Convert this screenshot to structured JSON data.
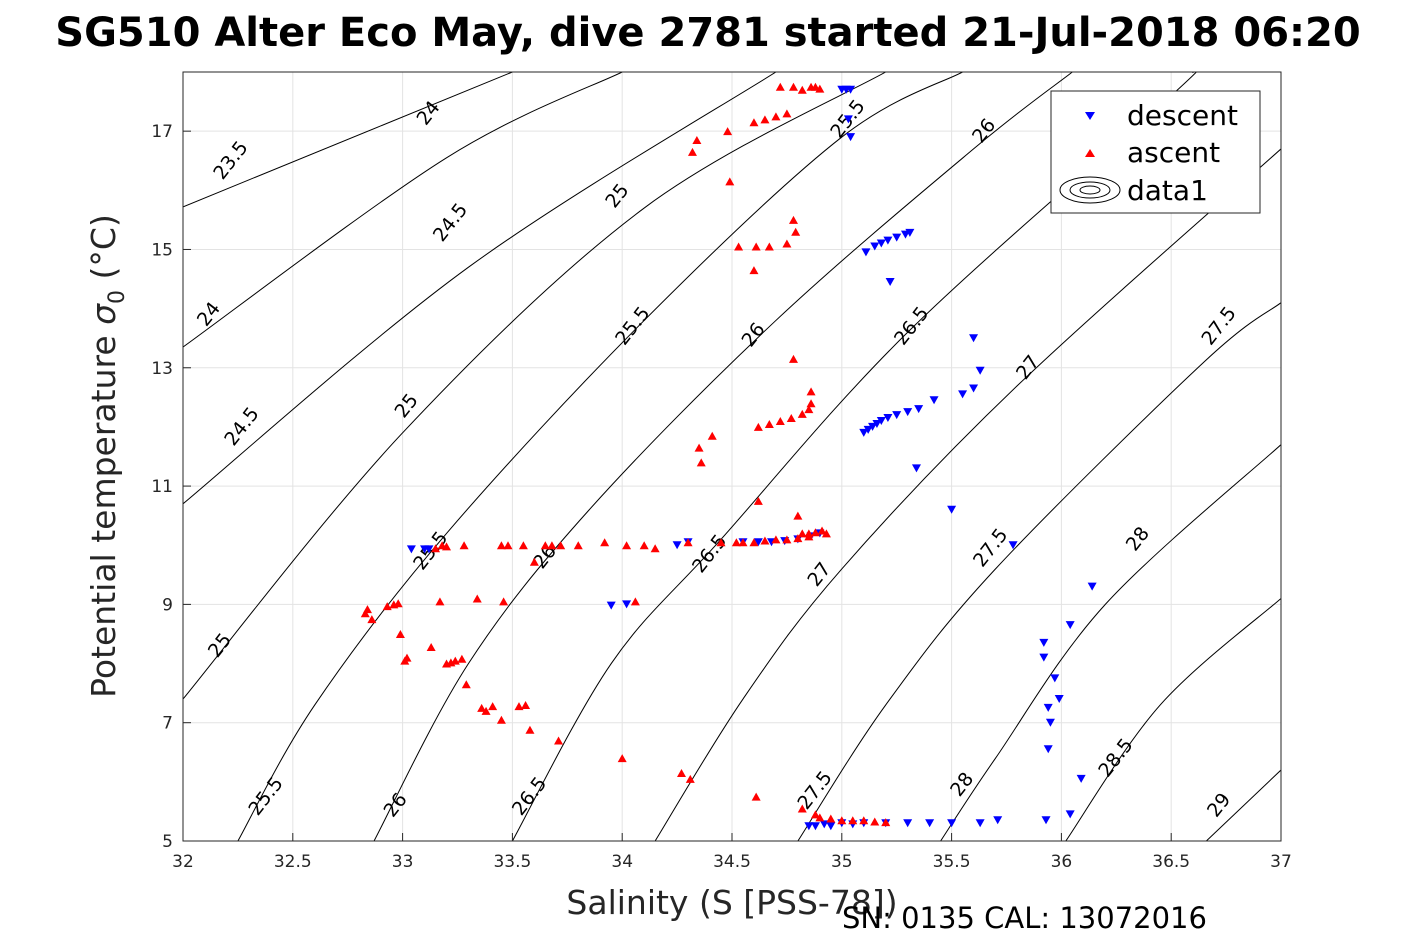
{
  "chart_data": {
    "type": "scatter",
    "title": "SG510 Alter Eco May, dive 2781 started 21-Jul-2018 06:20",
    "xlabel": "Salinity (S [PSS-78])",
    "ylabel_main": "Potential temperature ",
    "ylabel_sigma": "σ",
    "ylabel_sub": "0",
    "ylabel_unit": " (°C)",
    "footer": "SN: 0135  CAL: 13072016",
    "xlim": [
      32,
      37
    ],
    "ylim": [
      5,
      18
    ],
    "xticks": [
      32,
      32.5,
      33,
      33.5,
      34,
      34.5,
      35,
      35.5,
      36,
      36.5,
      37
    ],
    "yticks": [
      5,
      7,
      9,
      11,
      13,
      15,
      17
    ],
    "grid": true,
    "legend": {
      "placement": "top-right",
      "entries": [
        "descent",
        "ascent",
        "data1"
      ]
    },
    "contour_labels": [
      {
        "x": 32.22,
        "y": 16.5,
        "text": "23.5"
      },
      {
        "x": 33.12,
        "y": 17.3,
        "text": "24"
      },
      {
        "x": 32.12,
        "y": 13.9,
        "text": "24"
      },
      {
        "x": 33.22,
        "y": 15.45,
        "text": "24.5"
      },
      {
        "x": 32.27,
        "y": 12.0,
        "text": "24.5"
      },
      {
        "x": 33.98,
        "y": 15.9,
        "text": "25"
      },
      {
        "x": 33.02,
        "y": 12.35,
        "text": "25"
      },
      {
        "x": 32.17,
        "y": 8.3,
        "text": "25"
      },
      {
        "x": 34.05,
        "y": 13.7,
        "text": "25.5"
      },
      {
        "x": 33.13,
        "y": 9.9,
        "text": "25.5"
      },
      {
        "x": 32.38,
        "y": 5.75,
        "text": "25.5"
      },
      {
        "x": 34.6,
        "y": 13.55,
        "text": "26"
      },
      {
        "x": 33.65,
        "y": 9.8,
        "text": "26"
      },
      {
        "x": 32.97,
        "y": 5.6,
        "text": "26"
      },
      {
        "x": 35.03,
        "y": 17.2,
        "text": "25.5"
      },
      {
        "x": 35.65,
        "y": 17.0,
        "text": "26"
      },
      {
        "x": 35.32,
        "y": 13.7,
        "text": "26.5"
      },
      {
        "x": 34.4,
        "y": 9.85,
        "text": "26.5"
      },
      {
        "x": 33.58,
        "y": 5.75,
        "text": "26.5"
      },
      {
        "x": 35.85,
        "y": 13.0,
        "text": "27"
      },
      {
        "x": 34.9,
        "y": 9.5,
        "text": "27"
      },
      {
        "x": 34.88,
        "y": 5.85,
        "text": "27.5"
      },
      {
        "x": 35.68,
        "y": 9.95,
        "text": "27.5"
      },
      {
        "x": 36.72,
        "y": 13.7,
        "text": "27.5"
      },
      {
        "x": 35.55,
        "y": 5.95,
        "text": "28"
      },
      {
        "x": 36.35,
        "y": 10.1,
        "text": "28"
      },
      {
        "x": 36.25,
        "y": 6.4,
        "text": "28.5"
      },
      {
        "x": 36.72,
        "y": 5.6,
        "text": "29"
      }
    ],
    "contours": [
      {
        "sigma": 23.5,
        "points": [
          [
            32,
            15.72
          ],
          [
            33.5,
            18.0
          ]
        ]
      },
      {
        "sigma": 24,
        "points": [
          [
            32,
            13.35
          ],
          [
            33.2,
            16.55
          ],
          [
            34.0,
            18.0
          ]
        ]
      },
      {
        "sigma": 24.5,
        "points": [
          [
            32,
            10.7
          ],
          [
            33.3,
            14.7
          ],
          [
            34.7,
            18.0
          ]
        ]
      },
      {
        "sigma": 25,
        "points": [
          [
            32,
            7.4
          ],
          [
            33.0,
            11.9
          ],
          [
            34.1,
            15.7
          ],
          [
            35.2,
            18.0
          ]
        ]
      },
      {
        "sigma": 25.5,
        "points": [
          [
            32.25,
            5.0
          ],
          [
            32.6,
            7.3
          ],
          [
            33.2,
            10.2
          ],
          [
            34.1,
            13.8
          ],
          [
            35.0,
            16.9
          ],
          [
            35.55,
            18.0
          ]
        ]
      },
      {
        "sigma": 26,
        "points": [
          [
            32.87,
            5.0
          ],
          [
            33.3,
            8.0
          ],
          [
            33.85,
            10.6
          ],
          [
            34.7,
            13.8
          ],
          [
            35.6,
            16.7
          ],
          [
            36.05,
            18.0
          ]
        ]
      },
      {
        "sigma": 26.5,
        "points": [
          [
            33.5,
            5.0
          ],
          [
            33.95,
            8.0
          ],
          [
            34.45,
            10.1
          ],
          [
            35.3,
            13.6
          ],
          [
            36.5,
            17.6
          ],
          [
            36.6,
            18.0
          ]
        ]
      },
      {
        "sigma": 27,
        "points": [
          [
            34.15,
            5.0
          ],
          [
            34.55,
            7.4
          ],
          [
            35.0,
            9.6
          ],
          [
            35.8,
            12.7
          ],
          [
            37.0,
            16.7
          ]
        ]
      },
      {
        "sigma": 27.5,
        "points": [
          [
            34.8,
            5.0
          ],
          [
            35.2,
            7.3
          ],
          [
            35.7,
            9.6
          ],
          [
            36.65,
            13.1
          ],
          [
            37.0,
            14.1
          ]
        ]
      },
      {
        "sigma": 28,
        "points": [
          [
            35.45,
            5.0
          ],
          [
            35.7,
            6.4
          ],
          [
            36.2,
            9.0
          ],
          [
            37.0,
            11.7
          ]
        ]
      },
      {
        "sigma": 28.5,
        "points": [
          [
            36.02,
            5.0
          ],
          [
            36.45,
            7.3
          ],
          [
            37.0,
            9.1
          ]
        ]
      },
      {
        "sigma": 29,
        "points": [
          [
            36.66,
            5.0
          ],
          [
            37.0,
            6.2
          ]
        ]
      }
    ],
    "series": [
      {
        "name": "descent",
        "color": "#0000ff",
        "marker": "triangle-down",
        "points": [
          [
            35.0,
            17.7
          ],
          [
            35.02,
            17.7
          ],
          [
            35.04,
            17.7
          ],
          [
            35.03,
            17.2
          ],
          [
            35.04,
            16.9
          ],
          [
            35.11,
            14.95
          ],
          [
            35.15,
            15.05
          ],
          [
            35.18,
            15.1
          ],
          [
            35.21,
            15.15
          ],
          [
            35.25,
            15.2
          ],
          [
            35.29,
            15.25
          ],
          [
            35.31,
            15.28
          ],
          [
            35.22,
            14.45
          ],
          [
            35.1,
            11.9
          ],
          [
            35.12,
            11.95
          ],
          [
            35.14,
            12.0
          ],
          [
            35.16,
            12.05
          ],
          [
            35.18,
            12.1
          ],
          [
            35.21,
            12.15
          ],
          [
            35.25,
            12.2
          ],
          [
            35.3,
            12.25
          ],
          [
            35.35,
            12.3
          ],
          [
            35.42,
            12.45
          ],
          [
            35.55,
            12.55
          ],
          [
            35.6,
            12.65
          ],
          [
            35.63,
            12.95
          ],
          [
            35.6,
            13.5
          ],
          [
            35.34,
            11.3
          ],
          [
            35.5,
            10.6
          ],
          [
            35.78,
            10.0
          ],
          [
            33.04,
            9.93
          ],
          [
            33.1,
            9.93
          ],
          [
            33.12,
            9.93
          ],
          [
            33.95,
            8.98
          ],
          [
            34.02,
            9.0
          ],
          [
            34.25,
            10.0
          ],
          [
            34.3,
            10.05
          ],
          [
            34.55,
            10.05
          ],
          [
            34.62,
            10.05
          ],
          [
            34.68,
            10.05
          ],
          [
            34.74,
            10.07
          ],
          [
            34.8,
            10.1
          ],
          [
            34.86,
            10.15
          ],
          [
            34.9,
            10.2
          ],
          [
            35.92,
            8.35
          ],
          [
            35.92,
            8.1
          ],
          [
            35.94,
            7.25
          ],
          [
            35.95,
            7.0
          ],
          [
            35.94,
            6.55
          ],
          [
            35.97,
            7.75
          ],
          [
            35.99,
            7.4
          ],
          [
            36.04,
            8.65
          ],
          [
            36.14,
            9.3
          ],
          [
            36.09,
            6.05
          ],
          [
            36.04,
            5.45
          ],
          [
            35.93,
            5.35
          ],
          [
            34.85,
            5.25
          ],
          [
            34.88,
            5.25
          ],
          [
            34.92,
            5.28
          ],
          [
            34.95,
            5.25
          ],
          [
            35.0,
            5.3
          ],
          [
            35.05,
            5.28
          ],
          [
            35.1,
            5.3
          ],
          [
            35.2,
            5.3
          ],
          [
            35.3,
            5.3
          ],
          [
            35.4,
            5.3
          ],
          [
            35.5,
            5.3
          ],
          [
            35.63,
            5.3
          ],
          [
            35.71,
            5.35
          ]
        ]
      },
      {
        "name": "ascent",
        "color": "#ff0000",
        "marker": "triangle-up",
        "points": [
          [
            34.72,
            17.75
          ],
          [
            34.78,
            17.75
          ],
          [
            34.82,
            17.7
          ],
          [
            34.86,
            17.75
          ],
          [
            34.88,
            17.75
          ],
          [
            34.9,
            17.72
          ],
          [
            34.75,
            17.3
          ],
          [
            34.7,
            17.25
          ],
          [
            34.65,
            17.2
          ],
          [
            34.6,
            17.15
          ],
          [
            34.48,
            17.0
          ],
          [
            34.34,
            16.85
          ],
          [
            34.32,
            16.65
          ],
          [
            34.49,
            16.15
          ],
          [
            34.53,
            15.05
          ],
          [
            34.61,
            15.05
          ],
          [
            34.67,
            15.05
          ],
          [
            34.75,
            15.1
          ],
          [
            34.79,
            15.3
          ],
          [
            34.78,
            15.5
          ],
          [
            34.6,
            14.65
          ],
          [
            34.78,
            13.15
          ],
          [
            34.86,
            12.6
          ],
          [
            34.86,
            12.4
          ],
          [
            34.85,
            12.3
          ],
          [
            34.82,
            12.22
          ],
          [
            34.77,
            12.15
          ],
          [
            34.72,
            12.1
          ],
          [
            34.67,
            12.05
          ],
          [
            34.62,
            12.0
          ],
          [
            34.41,
            11.85
          ],
          [
            34.35,
            11.65
          ],
          [
            34.36,
            11.4
          ],
          [
            34.62,
            10.75
          ],
          [
            34.8,
            10.5
          ],
          [
            34.82,
            10.2
          ],
          [
            34.85,
            10.2
          ],
          [
            34.88,
            10.22
          ],
          [
            34.91,
            10.25
          ],
          [
            34.93,
            10.2
          ],
          [
            34.85,
            10.15
          ],
          [
            34.8,
            10.12
          ],
          [
            34.75,
            10.1
          ],
          [
            34.7,
            10.1
          ],
          [
            34.65,
            10.08
          ],
          [
            34.6,
            10.05
          ],
          [
            34.55,
            10.05
          ],
          [
            34.52,
            10.05
          ],
          [
            34.45,
            10.05
          ],
          [
            34.3,
            10.05
          ],
          [
            34.15,
            9.95
          ],
          [
            34.1,
            10.0
          ],
          [
            34.02,
            10.0
          ],
          [
            33.92,
            10.05
          ],
          [
            33.8,
            10.0
          ],
          [
            33.72,
            10.0
          ],
          [
            33.68,
            10.0
          ],
          [
            33.65,
            10.0
          ],
          [
            33.6,
            9.72
          ],
          [
            33.55,
            10.0
          ],
          [
            33.48,
            10.0
          ],
          [
            33.45,
            10.0
          ],
          [
            33.28,
            10.0
          ],
          [
            33.2,
            9.98
          ],
          [
            33.18,
            10.0
          ],
          [
            33.15,
            9.95
          ],
          [
            33.17,
            9.05
          ],
          [
            33.34,
            9.1
          ],
          [
            33.46,
            9.05
          ],
          [
            34.06,
            9.05
          ],
          [
            32.83,
            8.85
          ],
          [
            32.84,
            8.92
          ],
          [
            32.86,
            8.75
          ],
          [
            32.93,
            8.97
          ],
          [
            32.96,
            9.0
          ],
          [
            32.98,
            9.02
          ],
          [
            32.99,
            8.5
          ],
          [
            33.01,
            8.05
          ],
          [
            33.02,
            8.1
          ],
          [
            33.13,
            8.28
          ],
          [
            33.2,
            8.0
          ],
          [
            33.22,
            8.02
          ],
          [
            33.24,
            8.05
          ],
          [
            33.27,
            8.08
          ],
          [
            33.29,
            7.65
          ],
          [
            33.36,
            7.25
          ],
          [
            33.38,
            7.2
          ],
          [
            33.41,
            7.28
          ],
          [
            33.45,
            7.05
          ],
          [
            33.53,
            7.28
          ],
          [
            33.56,
            7.3
          ],
          [
            33.58,
            6.88
          ],
          [
            33.71,
            6.7
          ],
          [
            34.0,
            6.4
          ],
          [
            34.27,
            6.15
          ],
          [
            34.31,
            6.05
          ],
          [
            34.61,
            5.75
          ],
          [
            34.82,
            5.55
          ],
          [
            34.88,
            5.45
          ],
          [
            34.9,
            5.4
          ],
          [
            34.95,
            5.38
          ],
          [
            35.0,
            5.35
          ],
          [
            35.05,
            5.35
          ],
          [
            35.1,
            5.35
          ],
          [
            35.15,
            5.33
          ],
          [
            35.2,
            5.32
          ]
        ]
      }
    ]
  }
}
